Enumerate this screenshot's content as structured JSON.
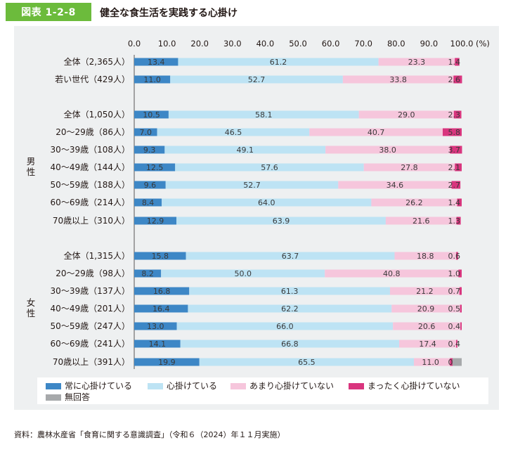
{
  "figure_label": "図表 1-2-8",
  "figure_title": "健全な食生活を実践する心掛け",
  "source_note": "資料：農林水産省「食育に関する意識調査」（令和６（2024）年１１月実施）",
  "colors": {
    "accent": "#6cbb3c",
    "panel_bg": "#eef0f1",
    "series": [
      "#3d87c6",
      "#bde3f4",
      "#f6c6dc",
      "#d9357e",
      "#a7a9ab"
    ]
  },
  "chart_data": {
    "type": "bar",
    "orientation": "horizontal",
    "stacked": true,
    "xlim": [
      0,
      100
    ],
    "x_ticks": [
      "0.0",
      "10.0",
      "20.0",
      "30.0",
      "40.0",
      "50.0",
      "60.0",
      "70.0",
      "80.0",
      "90.0",
      "100.0"
    ],
    "x_unit": "(%)",
    "legend_position": "bottom",
    "group_labels": [
      "男性",
      "女性"
    ],
    "series": [
      {
        "name": "常に心掛けている"
      },
      {
        "name": "心掛けている"
      },
      {
        "name": "あまり心掛けていない"
      },
      {
        "name": "まったく心掛けていない"
      },
      {
        "name": "無回答"
      }
    ],
    "rows": [
      {
        "label": "全体（2,365人）",
        "group": "",
        "values": [
          13.4,
          61.2,
          23.3,
          1.4,
          0
        ],
        "labels": [
          "13.4",
          "61.2",
          "23.3",
          "1.4",
          ""
        ]
      },
      {
        "label": "若い世代（429人）",
        "group": "",
        "values": [
          11.0,
          52.7,
          33.8,
          2.6,
          0
        ],
        "labels": [
          "11.0",
          "52.7",
          "33.8",
          "2.6",
          ""
        ]
      },
      {
        "label": "全体（1,050人）",
        "group": "男性",
        "values": [
          10.5,
          58.1,
          29.0,
          2.3,
          0
        ],
        "labels": [
          "10.5",
          "58.1",
          "29.0",
          "2.3",
          ""
        ]
      },
      {
        "label": "20～29歳（86人）",
        "group": "男性",
        "values": [
          7.0,
          46.5,
          40.7,
          5.8,
          0
        ],
        "labels": [
          "7.0",
          "46.5",
          "40.7",
          "5.8",
          ""
        ]
      },
      {
        "label": "30～39歳（108人）",
        "group": "男性",
        "values": [
          9.3,
          49.1,
          38.0,
          3.7,
          0
        ],
        "labels": [
          "9.3",
          "49.1",
          "38.0",
          "3.7",
          ""
        ]
      },
      {
        "label": "40～49歳（144人）",
        "group": "男性",
        "values": [
          12.5,
          57.6,
          27.8,
          2.1,
          0
        ],
        "labels": [
          "12.5",
          "57.6",
          "27.8",
          "2.1",
          ""
        ]
      },
      {
        "label": "50～59歳（188人）",
        "group": "男性",
        "values": [
          9.6,
          52.7,
          34.6,
          2.7,
          0
        ],
        "labels": [
          "9.6",
          "52.7",
          "34.6",
          "2.7",
          ""
        ]
      },
      {
        "label": "60～69歳（214人）",
        "group": "男性",
        "values": [
          8.4,
          64.0,
          26.2,
          1.4,
          0
        ],
        "labels": [
          "8.4",
          "64.0",
          "26.2",
          "1.4",
          ""
        ]
      },
      {
        "label": "70歳以上（310人）",
        "group": "男性",
        "values": [
          12.9,
          63.9,
          21.6,
          1.3,
          0
        ],
        "labels": [
          "12.9",
          "63.9",
          "21.6",
          "1.3",
          ""
        ]
      },
      {
        "label": "全体（1,315人）",
        "group": "女性",
        "values": [
          15.8,
          63.7,
          18.8,
          0.6,
          0
        ],
        "labels": [
          "15.8",
          "63.7",
          "18.8",
          "0.6",
          ""
        ]
      },
      {
        "label": "20～29歳（98人）",
        "group": "女性",
        "values": [
          8.2,
          50.0,
          40.8,
          1.0,
          0
        ],
        "labels": [
          "8.2",
          "50.0",
          "40.8",
          "1.0",
          ""
        ]
      },
      {
        "label": "30～39歳（137人）",
        "group": "女性",
        "values": [
          16.8,
          61.3,
          21.2,
          0.7,
          0
        ],
        "labels": [
          "16.8",
          "61.3",
          "21.2",
          "0.7",
          ""
        ]
      },
      {
        "label": "40～49歳（201人）",
        "group": "女性",
        "values": [
          16.4,
          62.2,
          20.9,
          0.5,
          0
        ],
        "labels": [
          "16.4",
          "62.2",
          "20.9",
          "0.5",
          ""
        ]
      },
      {
        "label": "50～59歳（247人）",
        "group": "女性",
        "values": [
          13.0,
          66.0,
          20.6,
          0.4,
          0
        ],
        "labels": [
          "13.0",
          "66.0",
          "20.6",
          "0.4",
          ""
        ]
      },
      {
        "label": "60～69歳（241人）",
        "group": "女性",
        "values": [
          14.1,
          66.8,
          17.4,
          0.4,
          0
        ],
        "labels": [
          "14.1",
          "66.8",
          "17.4",
          "0.4",
          ""
        ]
      },
      {
        "label": "70歳以上（391人）",
        "group": "女性",
        "values": [
          19.9,
          65.5,
          11.0,
          0.8,
          2.8
        ],
        "labels": [
          "19.9",
          "65.5",
          "11.0",
          "0.8",
          ""
        ]
      }
    ]
  }
}
